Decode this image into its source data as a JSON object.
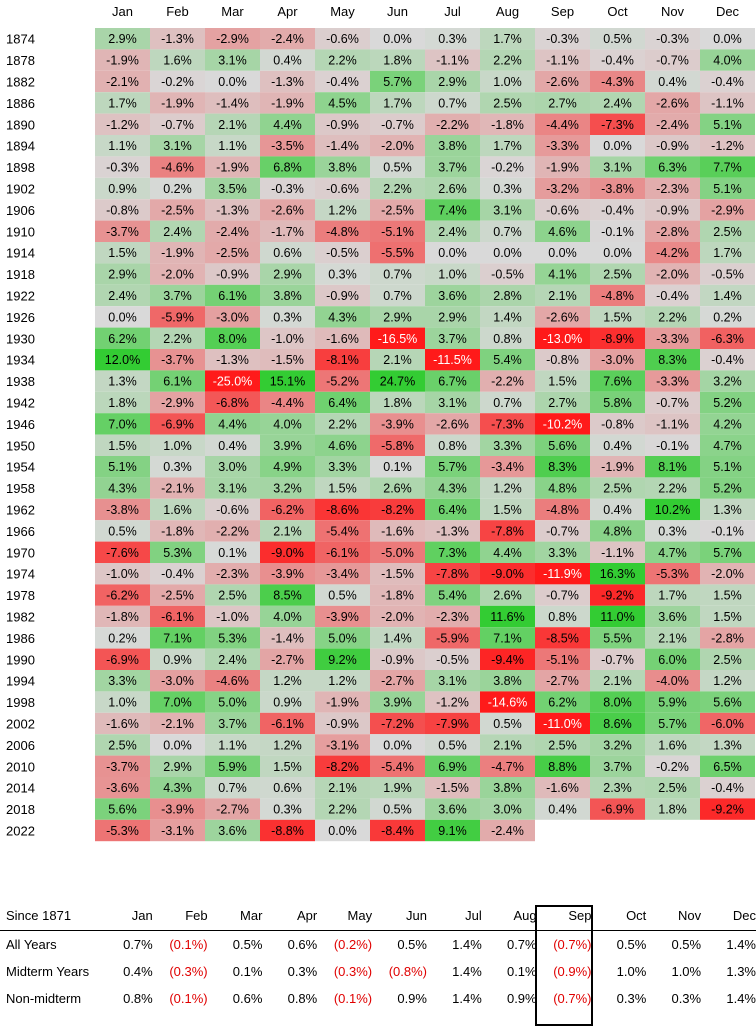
{
  "chart_data": {
    "type": "heatmap",
    "months": [
      "Jan",
      "Feb",
      "Mar",
      "Apr",
      "May",
      "Jun",
      "Jul",
      "Aug",
      "Sep",
      "Oct",
      "Nov",
      "Dec"
    ],
    "rows": [
      {
        "year": "1874",
        "values": [
          2.9,
          -1.3,
          -2.9,
          -2.4,
          -0.6,
          0.0,
          0.3,
          1.7,
          -0.3,
          0.5,
          -0.3,
          0.0
        ]
      },
      {
        "year": "1878",
        "values": [
          -1.9,
          1.6,
          3.1,
          0.4,
          2.2,
          1.8,
          -1.1,
          2.2,
          -1.1,
          -0.4,
          -0.7,
          4.0
        ]
      },
      {
        "year": "1882",
        "values": [
          -2.1,
          -0.2,
          0.0,
          -1.3,
          -0.4,
          5.7,
          2.9,
          1.0,
          -2.6,
          -4.3,
          0.4,
          -0.4
        ]
      },
      {
        "year": "1886",
        "values": [
          1.7,
          -1.9,
          -1.4,
          -1.9,
          4.5,
          1.7,
          0.7,
          2.5,
          2.7,
          2.4,
          -2.6,
          -1.1
        ]
      },
      {
        "year": "1890",
        "values": [
          -1.2,
          -0.7,
          2.1,
          4.4,
          -0.9,
          -0.7,
          -2.2,
          -1.8,
          -4.4,
          -7.3,
          -2.4,
          5.1
        ]
      },
      {
        "year": "1894",
        "values": [
          1.1,
          3.1,
          1.1,
          -3.5,
          -1.4,
          -2.0,
          3.8,
          1.7,
          -3.3,
          0.0,
          -0.9,
          -1.2
        ]
      },
      {
        "year": "1898",
        "values": [
          -0.3,
          -4.6,
          -1.9,
          6.8,
          3.8,
          0.5,
          3.7,
          -0.2,
          -1.9,
          3.1,
          6.3,
          7.7
        ]
      },
      {
        "year": "1902",
        "values": [
          0.9,
          0.2,
          3.5,
          -0.3,
          -0.6,
          2.2,
          2.6,
          0.3,
          -3.2,
          -3.8,
          -2.3,
          5.1
        ]
      },
      {
        "year": "1906",
        "values": [
          -0.8,
          -2.5,
          -1.3,
          -2.6,
          1.2,
          -2.5,
          7.4,
          3.1,
          -0.6,
          -0.4,
          -0.9,
          -2.9
        ]
      },
      {
        "year": "1910",
        "values": [
          -3.7,
          2.4,
          -2.4,
          -1.7,
          -4.8,
          -5.1,
          2.4,
          0.7,
          4.6,
          -0.1,
          -2.8,
          2.5
        ]
      },
      {
        "year": "1914",
        "values": [
          1.5,
          -1.9,
          -2.5,
          0.6,
          -0.5,
          -5.5,
          0.0,
          0.0,
          0.0,
          0.0,
          -4.2,
          1.7
        ]
      },
      {
        "year": "1918",
        "values": [
          2.9,
          -2.0,
          -0.9,
          2.9,
          0.3,
          0.7,
          1.0,
          -0.5,
          4.1,
          2.5,
          -2.0,
          -0.5
        ]
      },
      {
        "year": "1922",
        "values": [
          2.4,
          3.7,
          6.1,
          3.8,
          -0.9,
          0.7,
          3.6,
          2.8,
          2.1,
          -4.8,
          -0.4,
          1.4
        ]
      },
      {
        "year": "1926",
        "values": [
          0.0,
          -5.9,
          -3.0,
          0.3,
          4.3,
          2.9,
          2.9,
          1.4,
          -2.6,
          1.5,
          2.2,
          0.2
        ]
      },
      {
        "year": "1930",
        "values": [
          6.2,
          2.2,
          8.0,
          -1.0,
          -1.6,
          -16.5,
          3.7,
          0.8,
          -13.0,
          -8.9,
          -3.3,
          -6.3
        ]
      },
      {
        "year": "1934",
        "values": [
          12.0,
          -3.7,
          -1.3,
          -1.5,
          -8.1,
          2.1,
          -11.5,
          5.4,
          -0.8,
          -3.0,
          8.3,
          -0.4
        ]
      },
      {
        "year": "1938",
        "values": [
          1.3,
          6.1,
          -25.0,
          15.1,
          -5.2,
          24.7,
          6.7,
          -2.2,
          1.5,
          7.6,
          -3.3,
          3.2
        ]
      },
      {
        "year": "1942",
        "values": [
          1.8,
          -2.9,
          -6.8,
          -4.4,
          6.4,
          1.8,
          3.1,
          0.7,
          2.7,
          5.8,
          -0.7,
          5.2
        ]
      },
      {
        "year": "1946",
        "values": [
          7.0,
          -6.9,
          4.4,
          4.0,
          2.2,
          -3.9,
          -2.6,
          -7.3,
          -10.2,
          -0.8,
          -1.1,
          4.2
        ]
      },
      {
        "year": "1950",
        "values": [
          1.5,
          1.0,
          0.4,
          3.9,
          4.6,
          -5.8,
          0.8,
          3.3,
          5.6,
          0.4,
          -0.1,
          4.7
        ]
      },
      {
        "year": "1954",
        "values": [
          5.1,
          0.3,
          3.0,
          4.9,
          3.3,
          0.1,
          5.7,
          -3.4,
          8.3,
          -1.9,
          8.1,
          5.1
        ]
      },
      {
        "year": "1958",
        "values": [
          4.3,
          -2.1,
          3.1,
          3.2,
          1.5,
          2.6,
          4.3,
          1.2,
          4.8,
          2.5,
          2.2,
          5.2
        ]
      },
      {
        "year": "1962",
        "values": [
          -3.8,
          1.6,
          -0.6,
          -6.2,
          -8.6,
          -8.2,
          6.4,
          1.5,
          -4.8,
          0.4,
          10.2,
          1.3
        ]
      },
      {
        "year": "1966",
        "values": [
          0.5,
          -1.8,
          -2.2,
          2.1,
          -5.4,
          -1.6,
          -1.3,
          -7.8,
          -0.7,
          4.8,
          0.3,
          -0.1
        ]
      },
      {
        "year": "1970",
        "values": [
          -7.6,
          5.3,
          0.1,
          -9.0,
          -6.1,
          -5.0,
          7.3,
          4.4,
          3.3,
          -1.1,
          4.7,
          5.7
        ]
      },
      {
        "year": "1974",
        "values": [
          -1.0,
          -0.4,
          -2.3,
          -3.9,
          -3.4,
          -1.5,
          -7.8,
          -9.0,
          -11.9,
          16.3,
          -5.3,
          -2.0
        ]
      },
      {
        "year": "1978",
        "values": [
          -6.2,
          -2.5,
          2.5,
          8.5,
          0.5,
          -1.8,
          5.4,
          2.6,
          -0.7,
          -9.2,
          1.7,
          1.5
        ]
      },
      {
        "year": "1982",
        "values": [
          -1.8,
          -6.1,
          -1.0,
          4.0,
          -3.9,
          -2.0,
          -2.3,
          11.6,
          0.8,
          11.0,
          3.6,
          1.5
        ]
      },
      {
        "year": "1986",
        "values": [
          0.2,
          7.1,
          5.3,
          -1.4,
          5.0,
          1.4,
          -5.9,
          7.1,
          -8.5,
          5.5,
          2.1,
          -2.8
        ]
      },
      {
        "year": "1990",
        "values": [
          -6.9,
          0.9,
          2.4,
          -2.7,
          9.2,
          -0.9,
          -0.5,
          -9.4,
          -5.1,
          -0.7,
          6.0,
          2.5
        ]
      },
      {
        "year": "1994",
        "values": [
          3.3,
          -3.0,
          -4.6,
          1.2,
          1.2,
          -2.7,
          3.1,
          3.8,
          -2.7,
          2.1,
          -4.0,
          1.2
        ]
      },
      {
        "year": "1998",
        "values": [
          1.0,
          7.0,
          5.0,
          0.9,
          -1.9,
          3.9,
          -1.2,
          -14.6,
          6.2,
          8.0,
          5.9,
          5.6
        ]
      },
      {
        "year": "2002",
        "values": [
          -1.6,
          -2.1,
          3.7,
          -6.1,
          -0.9,
          -7.2,
          -7.9,
          0.5,
          -11.0,
          8.6,
          5.7,
          -6.0
        ]
      },
      {
        "year": "2006",
        "values": [
          2.5,
          0.0,
          1.1,
          1.2,
          -3.1,
          0.0,
          0.5,
          2.1,
          2.5,
          3.2,
          1.6,
          1.3
        ]
      },
      {
        "year": "2010",
        "values": [
          -3.7,
          2.9,
          5.9,
          1.5,
          -8.2,
          -5.4,
          6.9,
          -4.7,
          8.8,
          3.7,
          -0.2,
          6.5
        ]
      },
      {
        "year": "2014",
        "values": [
          -3.6,
          4.3,
          0.7,
          0.6,
          2.1,
          1.9,
          -1.5,
          3.8,
          -1.6,
          2.3,
          2.5,
          -0.4
        ]
      },
      {
        "year": "2018",
        "values": [
          5.6,
          -3.9,
          -2.7,
          0.3,
          2.2,
          0.5,
          3.6,
          3.0,
          0.4,
          -6.9,
          1.8,
          -9.2
        ]
      },
      {
        "year": "2022",
        "values": [
          -5.3,
          -3.1,
          3.6,
          -8.8,
          0.0,
          -8.4,
          9.1,
          -2.4,
          null,
          null,
          null,
          null
        ]
      }
    ],
    "colors": {
      "positive": "#33cc33",
      "negative": "#ff1a1a",
      "neutral": "#d9d9d9"
    }
  },
  "summary": {
    "title": "Since 1871",
    "months": [
      "Jan",
      "Feb",
      "Mar",
      "Apr",
      "May",
      "Jun",
      "Jul",
      "Aug",
      "Sep",
      "Oct",
      "Nov",
      "Dec"
    ],
    "rows": [
      {
        "label": "All Years",
        "values": [
          "0.7%",
          "(0.1%)",
          "0.5%",
          "0.6%",
          "(0.2%)",
          "0.5%",
          "1.4%",
          "0.7%",
          "(0.7%)",
          "0.5%",
          "0.5%",
          "1.4%"
        ]
      },
      {
        "label": "Midterm Years",
        "values": [
          "0.4%",
          "(0.3%)",
          "0.1%",
          "0.3%",
          "(0.3%)",
          "(0.8%)",
          "1.4%",
          "0.1%",
          "(0.9%)",
          "1.0%",
          "1.0%",
          "1.3%"
        ]
      },
      {
        "label": "Non-midterm",
        "values": [
          "0.8%",
          "(0.1%)",
          "0.6%",
          "0.8%",
          "(0.1%)",
          "0.9%",
          "1.4%",
          "0.9%",
          "(0.7%)",
          "0.3%",
          "0.3%",
          "1.4%"
        ]
      }
    ]
  }
}
